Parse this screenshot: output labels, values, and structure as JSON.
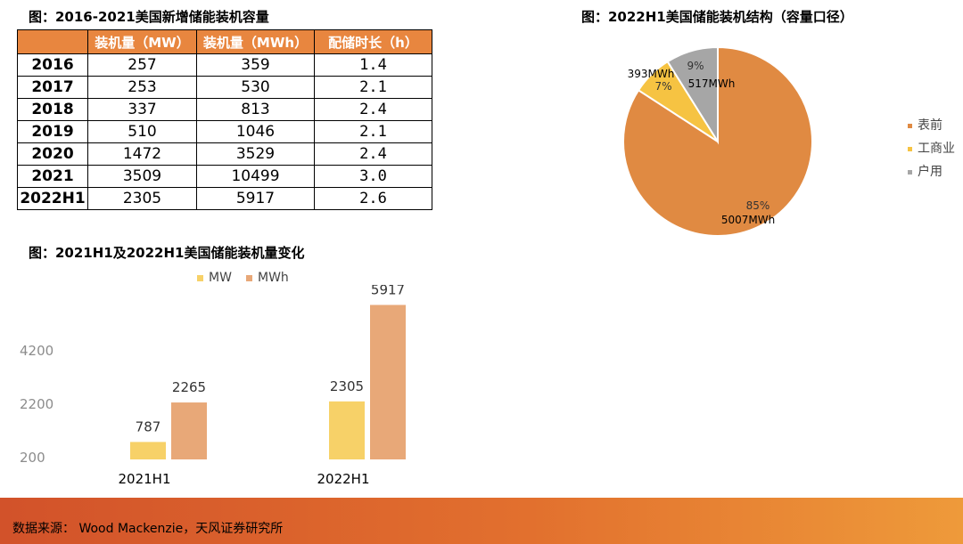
{
  "table_section": {
    "title": "图：2016-2021美国新增储能装机容量",
    "headers": [
      "",
      "装机量（MW）",
      "装机量（MWh）",
      "配储时长（h）"
    ],
    "rows": [
      [
        "2016",
        "257",
        "359",
        "1.4"
      ],
      [
        "2017",
        "253",
        "530",
        "2.1"
      ],
      [
        "2018",
        "337",
        "813",
        "2.4"
      ],
      [
        "2019",
        "510",
        "1046",
        "2.1"
      ],
      [
        "2020",
        "1472",
        "3529",
        "2.4"
      ],
      [
        "2021",
        "3509",
        "10499",
        "3.0"
      ],
      [
        "2022H1",
        "2305",
        "5917",
        "2.6"
      ]
    ],
    "header_color": "#E8863F"
  },
  "bar_section": {
    "title": "图：2021H1及2022H1美国储能装机量变化"
  },
  "pie_section": {
    "title": "图：2022H1美国储能装机结构（容量口径）"
  },
  "footer": {
    "source": "数据来源： Wood Mackenzie，天风证券研究所"
  },
  "chart_data": [
    {
      "type": "table",
      "title": "图：2016-2021美国新增储能装机容量",
      "columns": [
        "",
        "装机量（MW）",
        "装机量（MWh）",
        "配储时长（h）"
      ],
      "rows": [
        [
          "2016",
          257,
          359,
          1.4
        ],
        [
          "2017",
          253,
          530,
          2.1
        ],
        [
          "2018",
          337,
          813,
          2.4
        ],
        [
          "2019",
          510,
          1046,
          2.1
        ],
        [
          "2020",
          1472,
          3529,
          2.4
        ],
        [
          "2021",
          3509,
          10499,
          3.0
        ],
        [
          "2022H1",
          2305,
          5917,
          2.6
        ]
      ]
    },
    {
      "type": "bar",
      "title": "图：2021H1及2022H1美国储能装机量变化",
      "categories": [
        "2021H1",
        "2022H1"
      ],
      "series": [
        {
          "name": "MW",
          "values": [
            787,
            2305
          ],
          "color": "#F7D168"
        },
        {
          "name": "MWh",
          "values": [
            2265,
            5917
          ],
          "color": "#E8A878"
        }
      ],
      "y_ticks": [
        "200",
        "2200",
        "4200"
      ],
      "ylim": [
        200,
        6200
      ],
      "legend": "top",
      "grid": false
    },
    {
      "type": "pie",
      "title": "图：2022H1美国储能装机结构（容量口径）",
      "slices": [
        {
          "name": "表前",
          "value": 85,
          "value_label": "85%",
          "amount_label": "5007MWh",
          "color": "#E08A42"
        },
        {
          "name": "工商业",
          "value": 7,
          "value_label": "7%",
          "amount_label": "393MWh",
          "color": "#F6C342"
        },
        {
          "name": "户用",
          "value": 9,
          "value_label": "9%",
          "amount_label": "517MWh",
          "color": "#A6A6A6"
        }
      ],
      "start_angle_deg": 0,
      "legend": "right"
    }
  ]
}
